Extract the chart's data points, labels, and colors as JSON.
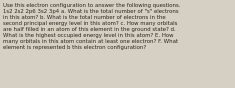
{
  "text": "Use this electron configuration to answer the following questions.\n1s2 2s2 2p6 3s2 3p4 a. What is the total number of \"s\" electrons\nin this atom? b. What is the total number of electrons in the\nsecond principal energy level in this atom? c. How many orbitals\nare half filled in an atom of this element in the ground state? d.\nWhat is the highest occupied energy level in this atom? E. How\nmany orbitals in this atom contain at least one electron? F. What\nelement is represented b this electron configuration?",
  "bg_color": "#d6cfc3",
  "text_color": "#2a2520",
  "font_size": 3.9,
  "fig_width": 2.35,
  "fig_height": 0.88,
  "dpi": 100
}
